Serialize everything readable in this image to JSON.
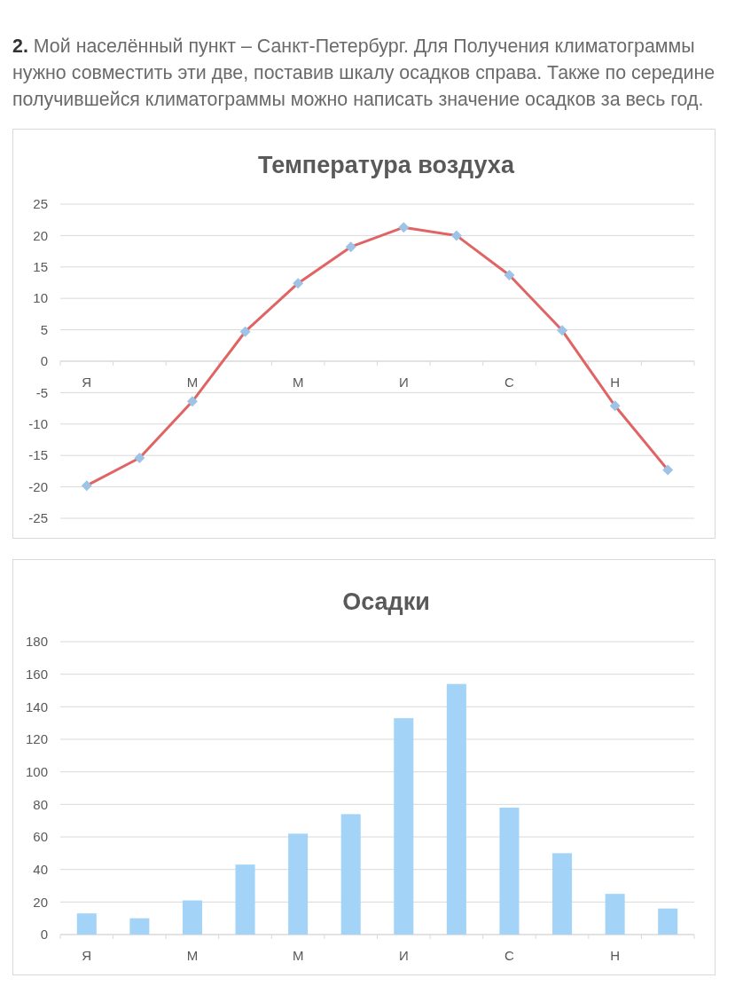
{
  "chart_data": [
    {
      "type": "line",
      "title": "Температура воздуха",
      "annotations": [
        "2. Мой населённый пункт – Санкт-Петербург. Для Получения климатограммы нужно совместить эти две, поставив шкалу осадков справа. Также по середине получившейся климатограммы можно написать значение осадков за весь год."
      ],
      "categories": [
        "Я",
        null,
        "М",
        null,
        "М",
        null,
        "И",
        null,
        "С",
        null,
        "Н",
        null
      ],
      "series": [
        {
          "color": "#e06464",
          "colors": [
            "#9dc3e6",
            "#9dc3e6",
            "#9dc3e6",
            "#9dc3e6",
            "#9dc3e6",
            "#9dc3e6",
            "#9dc3e6",
            "#9dc3e6",
            "#9dc3e6",
            "#9dc3e6",
            "#9dc3e6",
            "#9dc3e6"
          ],
          "values": [
            -19.8,
            -15.4,
            -6.4,
            4.7,
            12.4,
            18.2,
            21.3,
            20.0,
            13.7,
            4.9,
            -7.1,
            -17.3
          ]
        }
      ],
      "ylim": [
        -25,
        25
      ],
      "yticks": [
        -25,
        -20,
        -15,
        -10,
        -5,
        0,
        5,
        10,
        15,
        20,
        25
      ],
      "grid": "y",
      "marker": "diamond"
    },
    {
      "type": "bar",
      "title": "Осадки",
      "categories": [
        "Я",
        null,
        "М",
        null,
        "М",
        null,
        "И",
        null,
        "С",
        null,
        "Н",
        null
      ],
      "values": [
        13,
        10,
        21,
        43,
        62,
        74,
        133,
        154,
        78,
        50,
        25,
        16
      ],
      "color": "#a3d4f8",
      "ylim": [
        0,
        180
      ],
      "yticks": [
        0,
        20,
        40,
        60,
        80,
        100,
        120,
        140,
        160,
        180
      ],
      "grid": "y"
    }
  ]
}
